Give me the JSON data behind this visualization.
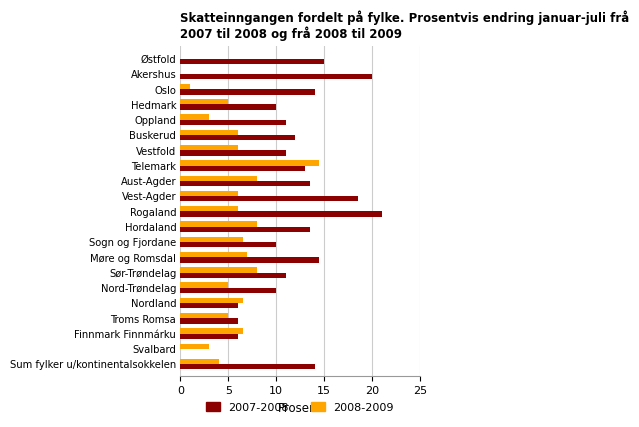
{
  "title": "Skatteinngangen fordelt på fylke. Prosentvis endring januar-juli frå\n2007 til 2008 og frå 2008 til 2009",
  "categories": [
    "Østfold",
    "Akershus",
    "Oslo",
    "Hedmark",
    "Oppland",
    "Buskerud",
    "Vestfold",
    "Telemark",
    "Aust-Agder",
    "Vest-Agder",
    "Rogaland",
    "Hordaland",
    "Sogn og Fjordane",
    "Møre og Romsdal",
    "Sør-Trøndelag",
    "Nord-Trøndelag",
    "Nordland",
    "Troms Romsa",
    "Finnmark Finnmárku",
    "Svalbard",
    "Sum fylker u/kontinentalsokkelen"
  ],
  "values_2007_2008": [
    15,
    20,
    14,
    10,
    11,
    12,
    11,
    13,
    13.5,
    18.5,
    21,
    13.5,
    10,
    14.5,
    11,
    10,
    6,
    6,
    6,
    0,
    14
  ],
  "values_2008_2009": [
    0,
    0,
    1,
    5,
    3,
    6,
    6,
    14.5,
    8,
    6,
    6,
    8,
    6.5,
    7,
    8,
    5,
    6.5,
    5,
    6.5,
    3,
    4
  ],
  "color_2007_2008": "#8B0000",
  "color_2008_2009": "#FFA500",
  "xlabel": "Prosent",
  "xlim": [
    0,
    25
  ],
  "xticks": [
    0,
    5,
    10,
    15,
    20,
    25
  ],
  "legend_labels": [
    "2007-2008",
    "2008-2009"
  ],
  "bar_height": 0.35,
  "grid_color": "#cccccc",
  "background_color": "#ffffff"
}
